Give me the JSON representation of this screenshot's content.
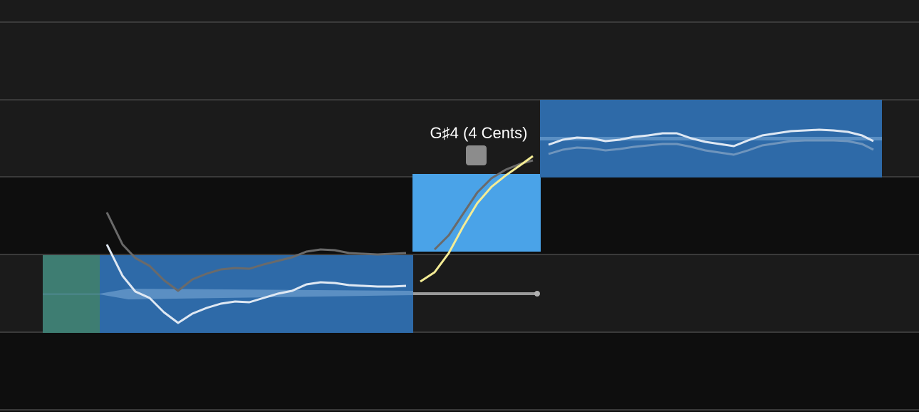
{
  "note_label": "G♯4 (4 Cents)"
}
